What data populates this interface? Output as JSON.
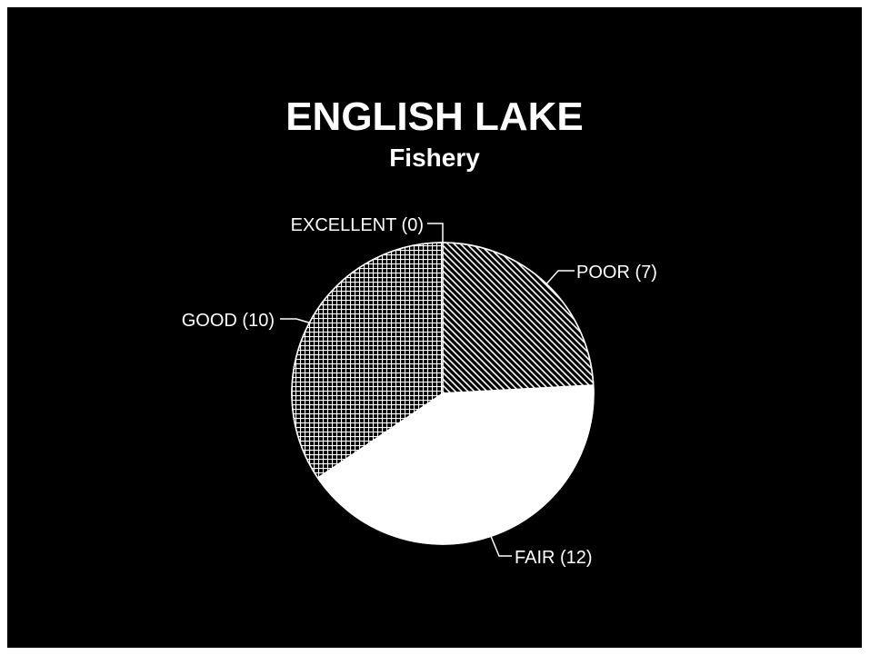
{
  "chart_data": {
    "type": "pie",
    "title": "ENGLISH LAKE",
    "subtitle": "Fishery",
    "slices": [
      {
        "label": "EXCELLENT",
        "value": 0,
        "display": "EXCELLENT (0)",
        "pattern": "none"
      },
      {
        "label": "POOR",
        "value": 7,
        "display": "POOR (7)",
        "pattern": "diagonal-hatch"
      },
      {
        "label": "FAIR",
        "value": 12,
        "display": "FAIR (12)",
        "pattern": "solid"
      },
      {
        "label": "GOOD",
        "value": 10,
        "display": "GOOD (10)",
        "pattern": "grid-hatch"
      }
    ],
    "colors": {
      "background": "#000000",
      "foreground": "#ffffff"
    }
  }
}
